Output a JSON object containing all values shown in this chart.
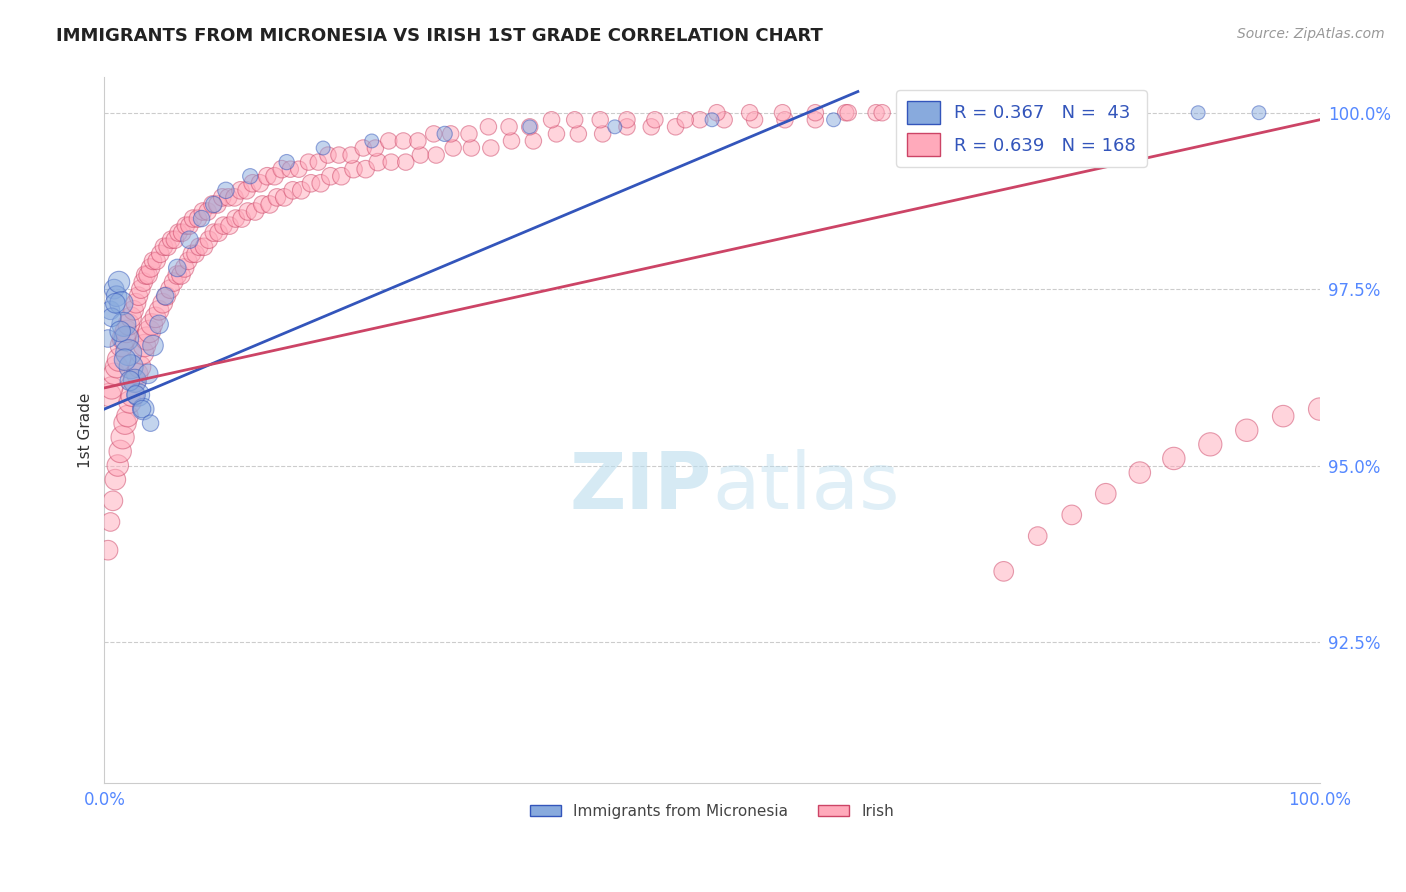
{
  "title": "IMMIGRANTS FROM MICRONESIA VS IRISH 1ST GRADE CORRELATION CHART",
  "source_text": "Source: ZipAtlas.com",
  "ylabel": "1st Grade",
  "watermark": "ZIPatlas",
  "legend_blue_R": "0.367",
  "legend_blue_N": "43",
  "legend_pink_R": "0.639",
  "legend_pink_N": "168",
  "legend_label_blue": "Immigrants from Micronesia",
  "legend_label_pink": "Irish",
  "blue_color": "#88AADD",
  "pink_color": "#FFAABB",
  "blue_line_color": "#3355BB",
  "pink_line_color": "#CC4466",
  "axis_label_color": "#5588FF",
  "title_color": "#222222",
  "watermark_color": "#BBDDEE",
  "xlim": [
    0.0,
    1.0
  ],
  "ylim": [
    0.905,
    1.005
  ],
  "yticks": [
    0.925,
    0.95,
    0.975,
    1.0
  ],
  "ytick_labels": [
    "92.5%",
    "95.0%",
    "97.5%",
    "100.0%"
  ],
  "blue_x": [
    0.005,
    0.008,
    0.01,
    0.012,
    0.014,
    0.016,
    0.018,
    0.02,
    0.022,
    0.025,
    0.028,
    0.032,
    0.036,
    0.04,
    0.045,
    0.05,
    0.06,
    0.07,
    0.08,
    0.09,
    0.1,
    0.12,
    0.15,
    0.18,
    0.22,
    0.28,
    0.35,
    0.42,
    0.5,
    0.6,
    0.7,
    0.8,
    0.9,
    0.95,
    0.003,
    0.006,
    0.009,
    0.013,
    0.017,
    0.021,
    0.026,
    0.031,
    0.038
  ],
  "blue_y": [
    0.972,
    0.975,
    0.974,
    0.976,
    0.973,
    0.97,
    0.968,
    0.966,
    0.964,
    0.962,
    0.96,
    0.958,
    0.963,
    0.967,
    0.97,
    0.974,
    0.978,
    0.982,
    0.985,
    0.987,
    0.989,
    0.991,
    0.993,
    0.995,
    0.996,
    0.997,
    0.998,
    0.998,
    0.999,
    0.999,
    0.999,
    0.999,
    1.0,
    1.0,
    0.968,
    0.971,
    0.973,
    0.969,
    0.965,
    0.962,
    0.96,
    0.958,
    0.956
  ],
  "blue_sizes": [
    180,
    200,
    220,
    240,
    280,
    300,
    320,
    350,
    300,
    280,
    260,
    240,
    200,
    220,
    180,
    160,
    160,
    160,
    140,
    140,
    140,
    120,
    120,
    100,
    100,
    120,
    100,
    100,
    100,
    100,
    100,
    100,
    100,
    100,
    160,
    180,
    200,
    220,
    240,
    200,
    180,
    160,
    140
  ],
  "pink_x": [
    0.003,
    0.005,
    0.007,
    0.009,
    0.011,
    0.013,
    0.015,
    0.017,
    0.019,
    0.021,
    0.023,
    0.025,
    0.027,
    0.029,
    0.031,
    0.033,
    0.035,
    0.037,
    0.039,
    0.042,
    0.045,
    0.048,
    0.051,
    0.054,
    0.057,
    0.06,
    0.063,
    0.066,
    0.069,
    0.072,
    0.075,
    0.078,
    0.082,
    0.086,
    0.09,
    0.094,
    0.098,
    0.103,
    0.108,
    0.113,
    0.118,
    0.124,
    0.13,
    0.136,
    0.142,
    0.148,
    0.155,
    0.162,
    0.17,
    0.178,
    0.186,
    0.195,
    0.205,
    0.215,
    0.225,
    0.236,
    0.248,
    0.26,
    0.273,
    0.287,
    0.302,
    0.318,
    0.335,
    0.353,
    0.372,
    0.39,
    0.41,
    0.43,
    0.45,
    0.47,
    0.49,
    0.51,
    0.535,
    0.56,
    0.585,
    0.61,
    0.635,
    0.66,
    0.686,
    0.713,
    0.74,
    0.768,
    0.796,
    0.824,
    0.852,
    0.88,
    0.91,
    0.94,
    0.97,
    1.0,
    0.004,
    0.006,
    0.008,
    0.01,
    0.012,
    0.014,
    0.016,
    0.018,
    0.02,
    0.022,
    0.024,
    0.026,
    0.028,
    0.03,
    0.032,
    0.034,
    0.036,
    0.038,
    0.04,
    0.043,
    0.046,
    0.049,
    0.052,
    0.055,
    0.058,
    0.061,
    0.064,
    0.067,
    0.07,
    0.073,
    0.077,
    0.081,
    0.085,
    0.089,
    0.093,
    0.097,
    0.102,
    0.107,
    0.112,
    0.117,
    0.122,
    0.128,
    0.134,
    0.14,
    0.146,
    0.153,
    0.16,
    0.168,
    0.176,
    0.184,
    0.193,
    0.203,
    0.213,
    0.223,
    0.234,
    0.246,
    0.258,
    0.271,
    0.285,
    0.3,
    0.316,
    0.333,
    0.35,
    0.368,
    0.387,
    0.408,
    0.43,
    0.453,
    0.478,
    0.504,
    0.531,
    0.558,
    0.585,
    0.612,
    0.64,
    0.67,
    0.7,
    0.73
  ],
  "pink_y": [
    0.938,
    0.942,
    0.945,
    0.948,
    0.95,
    0.952,
    0.954,
    0.956,
    0.957,
    0.959,
    0.96,
    0.962,
    0.963,
    0.964,
    0.966,
    0.967,
    0.968,
    0.969,
    0.97,
    0.971,
    0.972,
    0.973,
    0.974,
    0.975,
    0.976,
    0.977,
    0.977,
    0.978,
    0.979,
    0.98,
    0.98,
    0.981,
    0.981,
    0.982,
    0.983,
    0.983,
    0.984,
    0.984,
    0.985,
    0.985,
    0.986,
    0.986,
    0.987,
    0.987,
    0.988,
    0.988,
    0.989,
    0.989,
    0.99,
    0.99,
    0.991,
    0.991,
    0.992,
    0.992,
    0.993,
    0.993,
    0.993,
    0.994,
    0.994,
    0.995,
    0.995,
    0.995,
    0.996,
    0.996,
    0.997,
    0.997,
    0.997,
    0.998,
    0.998,
    0.998,
    0.999,
    0.999,
    0.999,
    0.999,
    0.999,
    1.0,
    1.0,
    1.0,
    1.0,
    1.0,
    0.935,
    0.94,
    0.943,
    0.946,
    0.949,
    0.951,
    0.953,
    0.955,
    0.957,
    0.958,
    0.96,
    0.961,
    0.963,
    0.964,
    0.965,
    0.967,
    0.968,
    0.969,
    0.97,
    0.971,
    0.972,
    0.973,
    0.974,
    0.975,
    0.976,
    0.977,
    0.977,
    0.978,
    0.979,
    0.979,
    0.98,
    0.981,
    0.981,
    0.982,
    0.982,
    0.983,
    0.983,
    0.984,
    0.984,
    0.985,
    0.985,
    0.986,
    0.986,
    0.987,
    0.987,
    0.988,
    0.988,
    0.988,
    0.989,
    0.989,
    0.99,
    0.99,
    0.991,
    0.991,
    0.992,
    0.992,
    0.992,
    0.993,
    0.993,
    0.994,
    0.994,
    0.994,
    0.995,
    0.995,
    0.996,
    0.996,
    0.996,
    0.997,
    0.997,
    0.997,
    0.998,
    0.998,
    0.998,
    0.999,
    0.999,
    0.999,
    0.999,
    0.999,
    0.999,
    1.0,
    1.0,
    1.0,
    1.0,
    1.0,
    1.0,
    1.0,
    1.0,
    1.0
  ],
  "pink_sizes": [
    200,
    180,
    200,
    220,
    240,
    260,
    280,
    260,
    240,
    260,
    280,
    260,
    240,
    260,
    280,
    260,
    280,
    260,
    240,
    220,
    200,
    200,
    180,
    180,
    180,
    180,
    180,
    180,
    160,
    160,
    160,
    160,
    160,
    160,
    160,
    160,
    160,
    160,
    160,
    160,
    160,
    160,
    160,
    160,
    160,
    160,
    160,
    160,
    160,
    160,
    160,
    160,
    160,
    160,
    160,
    140,
    140,
    140,
    140,
    140,
    140,
    140,
    140,
    140,
    140,
    140,
    140,
    140,
    140,
    140,
    140,
    140,
    140,
    140,
    140,
    140,
    140,
    140,
    140,
    140,
    200,
    180,
    200,
    220,
    240,
    260,
    280,
    260,
    240,
    260,
    280,
    260,
    240,
    260,
    280,
    260,
    280,
    260,
    240,
    220,
    200,
    200,
    180,
    180,
    180,
    180,
    180,
    180,
    160,
    160,
    160,
    160,
    160,
    160,
    160,
    160,
    160,
    160,
    160,
    160,
    160,
    160,
    160,
    160,
    160,
    160,
    160,
    160,
    160,
    160,
    160,
    160,
    160,
    160,
    160,
    140,
    140,
    140,
    140,
    140,
    140,
    140,
    140,
    140,
    140,
    140,
    140,
    140,
    140,
    140,
    140,
    140,
    140,
    140,
    140,
    140,
    140,
    140,
    140,
    140,
    140,
    140,
    140,
    140,
    140,
    140,
    140,
    140
  ]
}
